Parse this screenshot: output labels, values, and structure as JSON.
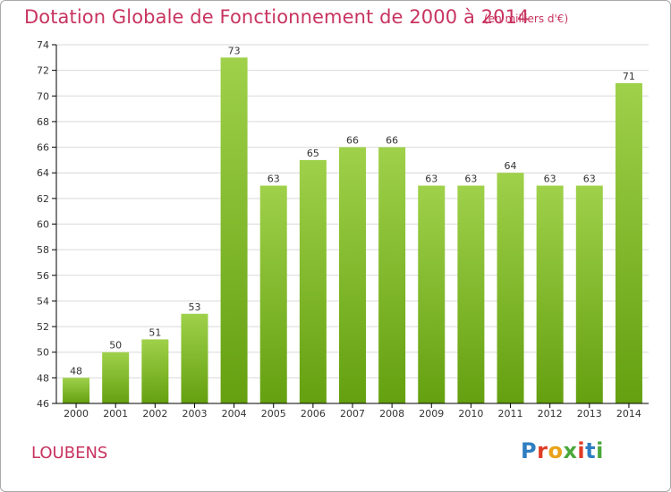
{
  "title": "Dotation Globale de Fonctionnement de 2000 à 2014",
  "unit_note": "(en milliers d'€)",
  "commune": "LOUBENS",
  "logo": {
    "text": "Proxiti",
    "letter_colors": [
      "#2f7ec1",
      "#e03b24",
      "#e9a21a",
      "#4aa83a",
      "#e03b24",
      "#2f7ec1",
      "#4aa83a"
    ]
  },
  "colors": {
    "title": "#c8345f",
    "bar_top": "#9fd14a",
    "bar_bottom": "#64a010",
    "axis": "#000000",
    "grid": "#d9d9d9",
    "label": "#333333"
  },
  "chart_data": {
    "type": "bar",
    "categories": [
      "2000",
      "2001",
      "2002",
      "2003",
      "2004",
      "2005",
      "2006",
      "2007",
      "2008",
      "2009",
      "2010",
      "2011",
      "2012",
      "2013",
      "2014"
    ],
    "values": [
      48,
      50,
      51,
      53,
      73,
      63,
      65,
      66,
      66,
      63,
      63,
      64,
      63,
      63,
      71
    ],
    "data_labels": [
      "48",
      "50",
      "51",
      "53",
      "73",
      "63",
      "65",
      "66",
      "66",
      "63",
      "63",
      "64",
      "63",
      "63",
      "71"
    ],
    "yticks": [
      "46",
      "48",
      "50",
      "52",
      "54",
      "56",
      "58",
      "60",
      "62",
      "64",
      "66",
      "68",
      "70",
      "72",
      "74"
    ],
    "ylim": [
      46,
      74
    ],
    "grid": true,
    "legend": "none",
    "title": "Dotation Globale de Fonctionnement de 2000 à 2014",
    "xlabel": "",
    "ylabel": ""
  }
}
